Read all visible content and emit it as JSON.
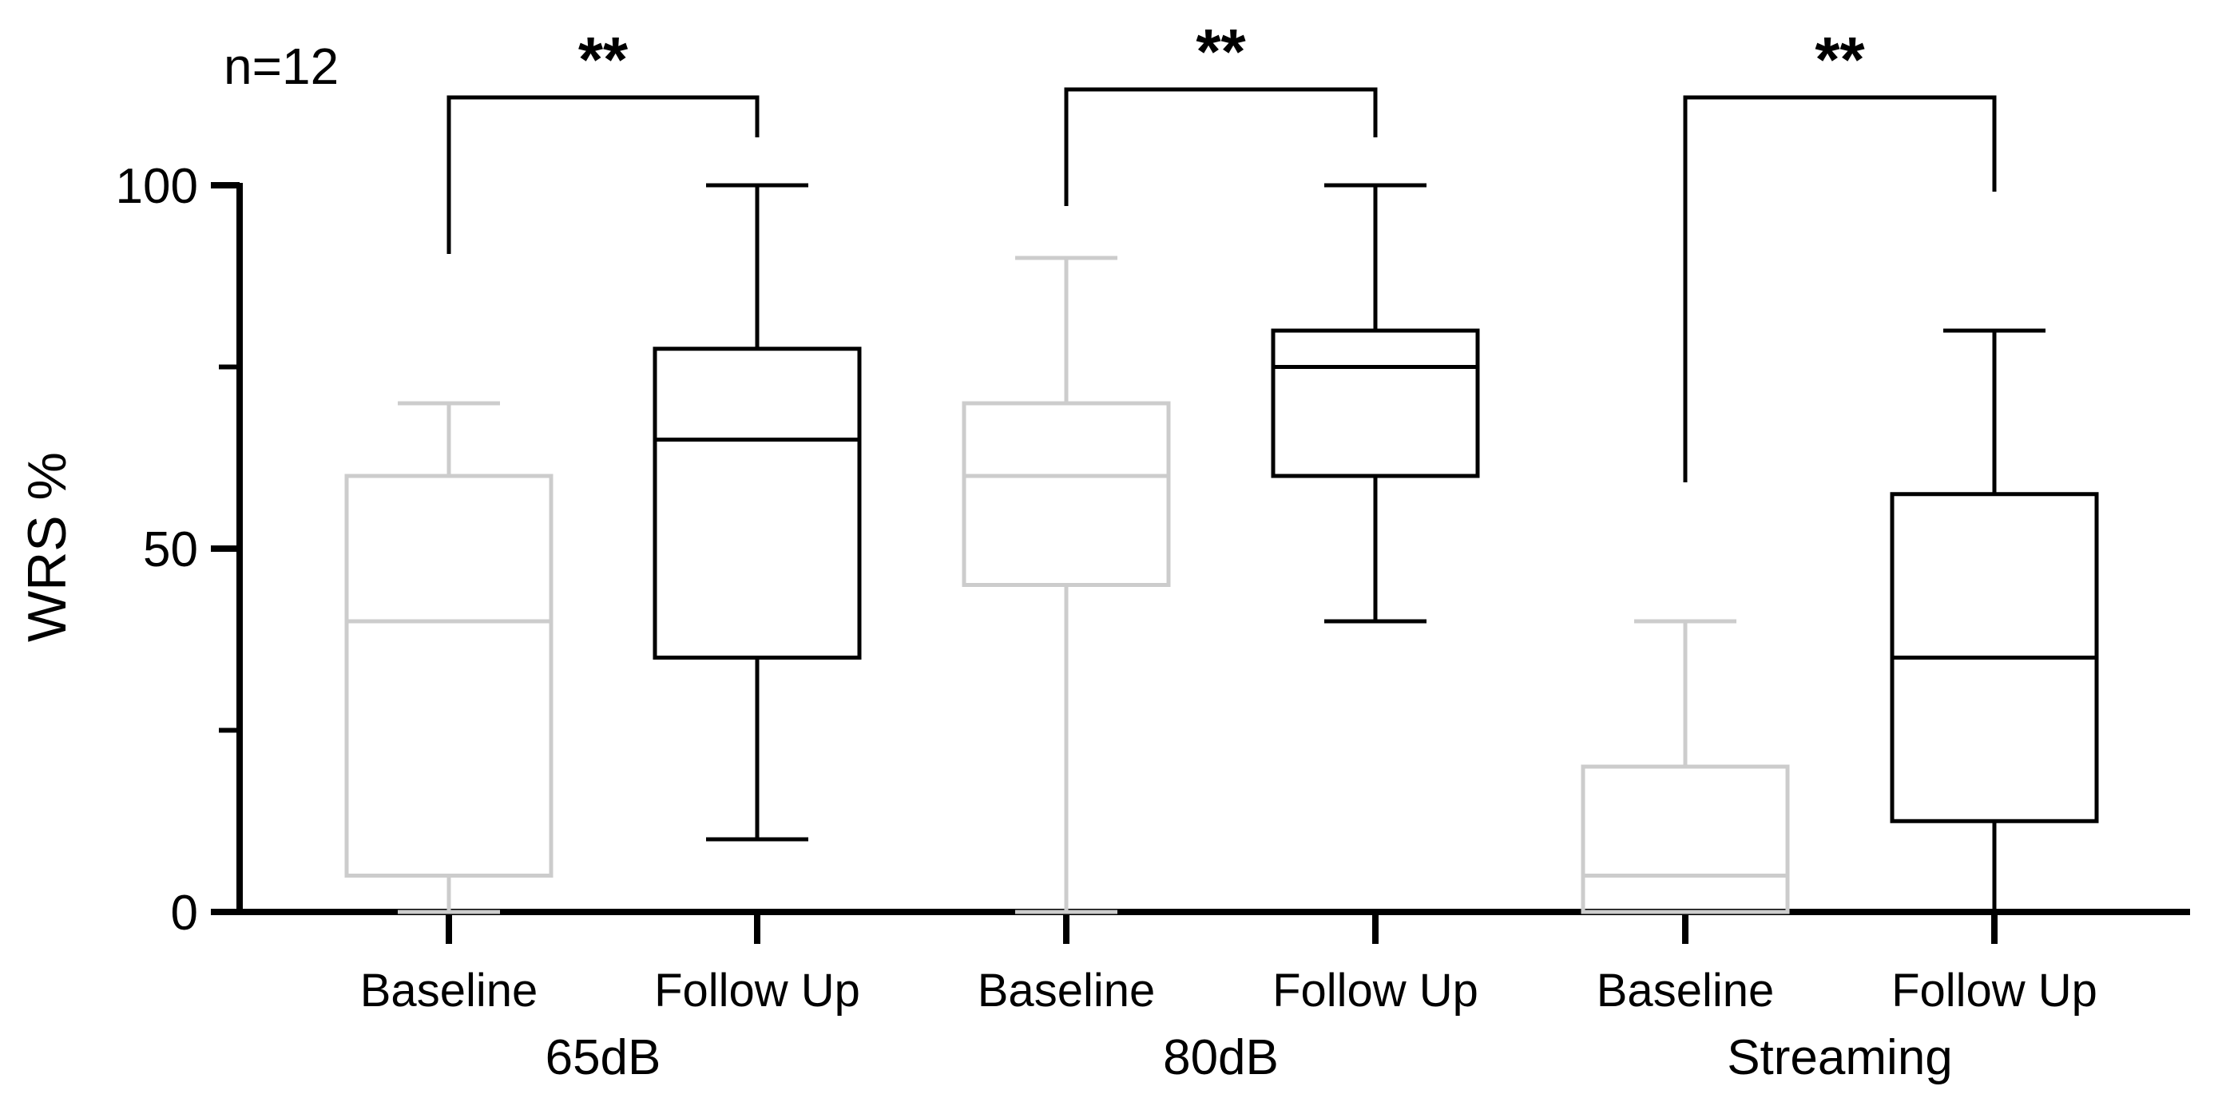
{
  "chart_data": {
    "type": "boxplot",
    "annotation": "n=12",
    "ylabel": "WRS %",
    "xlabel": "",
    "ylim": [
      0,
      100
    ],
    "y_ticks": [
      "0",
      "50",
      "100"
    ],
    "y_minor_ticks": [
      25,
      75
    ],
    "grid": false,
    "legend": "none",
    "groups": [
      {
        "label": "65dB",
        "significance": "**",
        "boxes": [
          {
            "label": "Baseline",
            "min": 0,
            "q1": 5,
            "median": 40,
            "q3": 60,
            "max": 70,
            "color": "#cccccc"
          },
          {
            "label": "Follow Up",
            "min": 10,
            "q1": 35,
            "median": 65,
            "q3": 77.5,
            "max": 100,
            "color": "#000000"
          }
        ]
      },
      {
        "label": "80dB",
        "significance": "**",
        "boxes": [
          {
            "label": "Baseline",
            "min": 0,
            "q1": 45,
            "median": 60,
            "q3": 70,
            "max": 90,
            "color": "#cccccc"
          },
          {
            "label": "Follow Up",
            "min": 40,
            "q1": 60,
            "median": 75,
            "q3": 80,
            "max": 100,
            "color": "#000000"
          }
        ]
      },
      {
        "label": "Streaming",
        "significance": "**",
        "boxes": [
          {
            "label": "Baseline",
            "min": 0,
            "q1": 0,
            "median": 5,
            "q3": 20,
            "max": 40,
            "color": "#cccccc"
          },
          {
            "label": "Follow Up",
            "min": 0,
            "q1": 12.5,
            "median": 35,
            "q3": 57.5,
            "max": 80,
            "color": "#000000"
          }
        ]
      }
    ]
  }
}
